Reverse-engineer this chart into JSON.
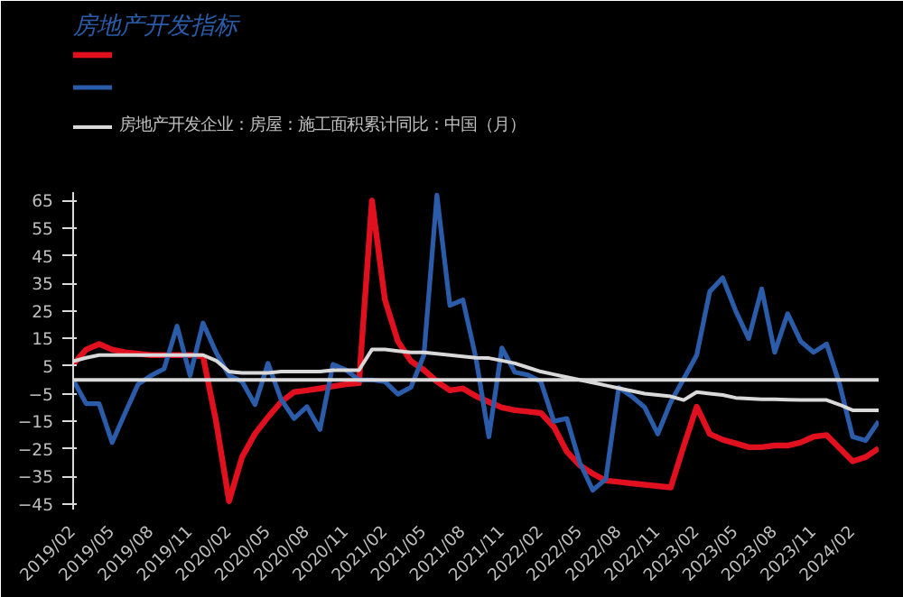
{
  "chart_data": {
    "type": "line",
    "title": "房地产开发指标",
    "x": [
      "2019-02",
      "2019-03",
      "2019-04",
      "2019-05",
      "2019-06",
      "2019-07",
      "2019-08",
      "2019-09",
      "2019-10",
      "2019-11",
      "2019-12",
      "2020-01",
      "2020-02",
      "2020-03",
      "2020-04",
      "2020-05",
      "2020-06",
      "2020-07",
      "2020-08",
      "2020-09",
      "2020-10",
      "2020-11",
      "2020-12",
      "2021-01",
      "2021-02",
      "2021-03",
      "2021-04",
      "2021-05",
      "2021-06",
      "2021-07",
      "2021-08",
      "2021-09",
      "2021-10",
      "2021-11",
      "2021-12",
      "2022-01",
      "2022-02",
      "2022-03",
      "2022-04",
      "2022-05",
      "2022-06",
      "2022-07",
      "2022-08",
      "2022-09",
      "2022-10",
      "2022-11",
      "2022-12",
      "2023-01",
      "2023-02",
      "2023-03",
      "2023-04",
      "2023-05",
      "2023-06",
      "2023-07",
      "2023-08",
      "2023-09",
      "2023-10",
      "2023-11",
      "2023-12",
      "2024-01",
      "2024-02",
      "2024-03",
      "2024-04"
    ],
    "series": [
      {
        "color": "#e0101e",
        "values": [
          5.6,
          11,
          13,
          11,
          10,
          9.5,
          9,
          9,
          9,
          9,
          8.5,
          -15,
          -44,
          -28,
          -19.5,
          -13.5,
          -8,
          -4.4,
          -3.8,
          -3.1,
          -2.3,
          -1.6,
          -1.2,
          65,
          29,
          14,
          6.8,
          3.6,
          -0.6,
          -3.8,
          -3.1,
          -5.9,
          -8,
          -10,
          -11,
          -11.5,
          -12,
          -17,
          -26,
          -31,
          -34,
          -36.5,
          -37,
          -37.5,
          -38,
          -38.5,
          -39,
          -24,
          -9.7,
          -19.6,
          -21.7,
          -23,
          -24.4,
          -24.4,
          -23.8,
          -23.8,
          -22.7,
          -20.6,
          -20,
          -24.8,
          -29.5,
          -28,
          -24.8
        ]
      },
      {
        "color": "#2a5caa",
        "values": [
          0,
          -8.6,
          -8.6,
          -22.7,
          -12,
          -1.6,
          1.6,
          4,
          19.5,
          1.6,
          20.6,
          10,
          1.6,
          -0.6,
          -9,
          6,
          -7,
          -14,
          -9.7,
          -18,
          5.6,
          3.6,
          0,
          0,
          -0.6,
          -5.2,
          -2.7,
          9,
          67,
          27,
          29,
          8,
          -20.6,
          11.6,
          2.8,
          1.8,
          -0.6,
          -15,
          -14,
          -30,
          -40,
          -36,
          -2.7,
          -6,
          -10,
          -19.6,
          -8,
          0.4,
          9,
          32,
          37,
          25,
          15,
          33,
          10,
          24,
          14,
          10,
          13,
          -1.6,
          -20.6,
          -22,
          -15
        ]
      },
      {
        "name": "房地产开发企业：房屋：施工面积累计同比：中国（月）",
        "color": "#d9d9d9",
        "values": [
          6.8,
          8,
          9,
          9,
          9,
          9,
          9,
          9,
          9,
          9,
          9,
          7,
          3,
          2.5,
          2.5,
          2.5,
          3,
          3,
          3,
          3,
          3.5,
          3.5,
          3.5,
          11,
          11,
          10.5,
          10,
          10,
          9.5,
          9,
          8.5,
          8,
          7.9,
          7,
          6,
          4.5,
          3,
          2,
          1,
          0,
          -1,
          -2,
          -3,
          -4,
          -5,
          -5.5,
          -6,
          -7.3,
          -4.4,
          -5,
          -5.5,
          -6.5,
          -6.8,
          -7,
          -7,
          -7.2,
          -7.3,
          -7.3,
          -7.3,
          -9,
          -11,
          -11,
          -11
        ]
      }
    ],
    "xlim": [
      "2019-02",
      "2024-04"
    ],
    "xticks": [
      {
        "value": "2019-02",
        "label": "2019/02"
      },
      {
        "value": "2019-05",
        "label": "2019/05"
      },
      {
        "value": "2019-08",
        "label": "2019/08"
      },
      {
        "value": "2019-11",
        "label": "2019/11"
      },
      {
        "value": "2020-02",
        "label": "2020/02"
      },
      {
        "value": "2020-05",
        "label": "2020/05"
      },
      {
        "value": "2020-08",
        "label": "2020/08"
      },
      {
        "value": "2020-11",
        "label": "2020/11"
      },
      {
        "value": "2021-02",
        "label": "2021/02"
      },
      {
        "value": "2021-05",
        "label": "2021/05"
      },
      {
        "value": "2021-08",
        "label": "2021/08"
      },
      {
        "value": "2021-11",
        "label": "2021/11"
      },
      {
        "value": "2022-02",
        "label": "2022/02"
      },
      {
        "value": "2022-05",
        "label": "2022/05"
      },
      {
        "value": "2022-08",
        "label": "2022/08"
      },
      {
        "value": "2022-11",
        "label": "2022/11"
      },
      {
        "value": "2023-02",
        "label": "2023/02"
      },
      {
        "value": "2023-05",
        "label": "2023/05"
      },
      {
        "value": "2023-08",
        "label": "2023/08"
      },
      {
        "value": "2023-11",
        "label": "2023/11"
      },
      {
        "value": "2024-02",
        "label": "2024/02"
      }
    ],
    "ylim": [
      -47,
      68
    ],
    "yticks": [
      -45,
      -35,
      -25,
      -15,
      -5,
      5,
      15,
      25,
      35,
      45,
      55,
      65
    ],
    "grid": false,
    "legend": "top",
    "line_style": "solid",
    "marker": "none"
  }
}
